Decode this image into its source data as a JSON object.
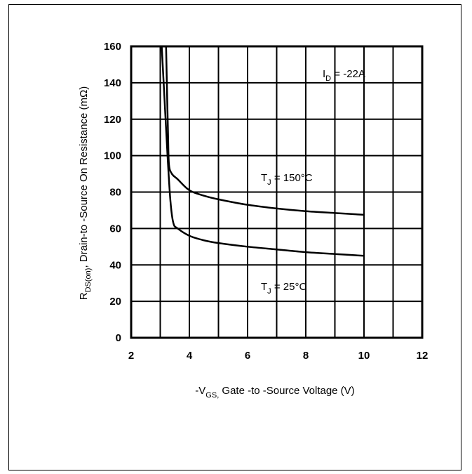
{
  "chart_data": {
    "type": "line",
    "xlim": [
      2,
      12
    ],
    "ylim": [
      0,
      160
    ],
    "x_ticks": [
      "2",
      "4",
      "6",
      "8",
      "10",
      "12"
    ],
    "y_ticks": [
      "0",
      "20",
      "40",
      "60",
      "80",
      "100",
      "120",
      "140",
      "160"
    ],
    "grid": true,
    "xlabel": {
      "prefix": "-V",
      "sub": "GS,",
      "rest": " Gate -to -Source Voltage  (V)"
    },
    "ylabel": {
      "prefix": "R",
      "sub": "DS(on)",
      "rest": ",  Drain-to -Source On Resistance  (mΩ)"
    },
    "annotations": {
      "current": {
        "prefix": "I",
        "sub": "D",
        "rest": " = -22A"
      },
      "tj150": {
        "prefix": "T",
        "sub": "J",
        "rest": " = 150°C"
      },
      "tj25": {
        "prefix": "T",
        "sub": "J",
        "rest": " = 25°C"
      }
    },
    "series": [
      {
        "values": [
          [
            3.2,
            160
          ],
          [
            3.24,
            130
          ],
          [
            3.27,
            110
          ],
          [
            3.3,
            95
          ],
          [
            3.4,
            90
          ],
          [
            3.6,
            87
          ],
          [
            4.0,
            81
          ],
          [
            4.5,
            78
          ],
          [
            5.0,
            76
          ],
          [
            6.0,
            73
          ],
          [
            7.0,
            71
          ],
          [
            8.0,
            69.5
          ],
          [
            9.0,
            68.5
          ],
          [
            10.0,
            67.5
          ]
        ]
      },
      {
        "values": [
          [
            3.05,
            160
          ],
          [
            3.15,
            130
          ],
          [
            3.25,
            100
          ],
          [
            3.35,
            75
          ],
          [
            3.45,
            63
          ],
          [
            3.6,
            60
          ],
          [
            4.0,
            56
          ],
          [
            4.5,
            53.5
          ],
          [
            5.0,
            52
          ],
          [
            6.0,
            50
          ],
          [
            7.0,
            48.5
          ],
          [
            8.0,
            47
          ],
          [
            9.0,
            46
          ],
          [
            10.0,
            45
          ]
        ]
      }
    ],
    "colors": {
      "line": "#000000",
      "grid": "#000000",
      "background": "#ffffff"
    }
  }
}
